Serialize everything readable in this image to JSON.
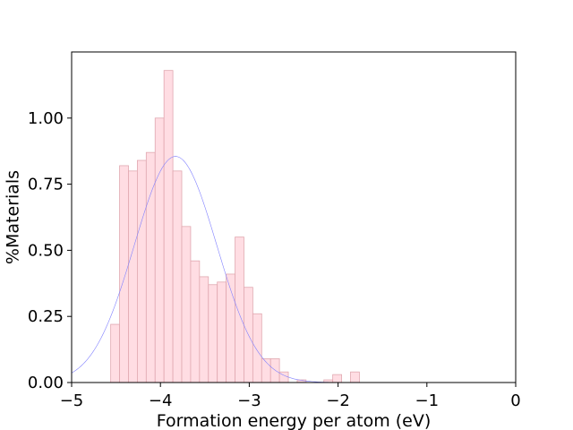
{
  "chart_data": {
    "type": "bar",
    "xlabel": "Formation energy per atom (eV)",
    "ylabel": "%Materials",
    "xlim": [
      -5,
      0
    ],
    "ylim": [
      0,
      1.25
    ],
    "xticks": [
      -5,
      -4,
      -3,
      -2,
      -1,
      0
    ],
    "yticks": [
      0.0,
      0.25,
      0.5,
      0.75,
      1.0
    ],
    "xtick_labels": [
      "−5",
      "−4",
      "−3",
      "−2",
      "−1",
      "0"
    ],
    "ytick_labels": [
      "0.00",
      "0.25",
      "0.50",
      "0.75",
      "1.00"
    ],
    "grid": false,
    "bin_width": 0.1,
    "bar_color": "#ffdde3",
    "bar_edge_color": "#e0a8b0",
    "bins": [
      {
        "x0": -4.56,
        "value": 0.22
      },
      {
        "x0": -4.46,
        "value": 0.82
      },
      {
        "x0": -4.36,
        "value": 0.8
      },
      {
        "x0": -4.26,
        "value": 0.84
      },
      {
        "x0": -4.16,
        "value": 0.87
      },
      {
        "x0": -4.06,
        "value": 1.0
      },
      {
        "x0": -3.96,
        "value": 1.18
      },
      {
        "x0": -3.86,
        "value": 0.8
      },
      {
        "x0": -3.76,
        "value": 0.59
      },
      {
        "x0": -3.66,
        "value": 0.46
      },
      {
        "x0": -3.56,
        "value": 0.4
      },
      {
        "x0": -3.46,
        "value": 0.37
      },
      {
        "x0": -3.36,
        "value": 0.38
      },
      {
        "x0": -3.26,
        "value": 0.41
      },
      {
        "x0": -3.16,
        "value": 0.55
      },
      {
        "x0": -3.06,
        "value": 0.36
      },
      {
        "x0": -2.96,
        "value": 0.26
      },
      {
        "x0": -2.86,
        "value": 0.09
      },
      {
        "x0": -2.76,
        "value": 0.09
      },
      {
        "x0": -2.66,
        "value": 0.04
      },
      {
        "x0": -2.56,
        "value": 0.0
      },
      {
        "x0": -2.46,
        "value": 0.01
      },
      {
        "x0": -2.36,
        "value": 0.0
      },
      {
        "x0": -2.26,
        "value": 0.0
      },
      {
        "x0": -2.16,
        "value": 0.01
      },
      {
        "x0": -2.06,
        "value": 0.03
      },
      {
        "x0": -1.96,
        "value": 0.0
      },
      {
        "x0": -1.86,
        "value": 0.04
      }
    ],
    "fit_curve": {
      "type": "normal",
      "mean": -3.83,
      "std": 0.465,
      "peak": 0.855,
      "color": "#8080ff"
    }
  }
}
